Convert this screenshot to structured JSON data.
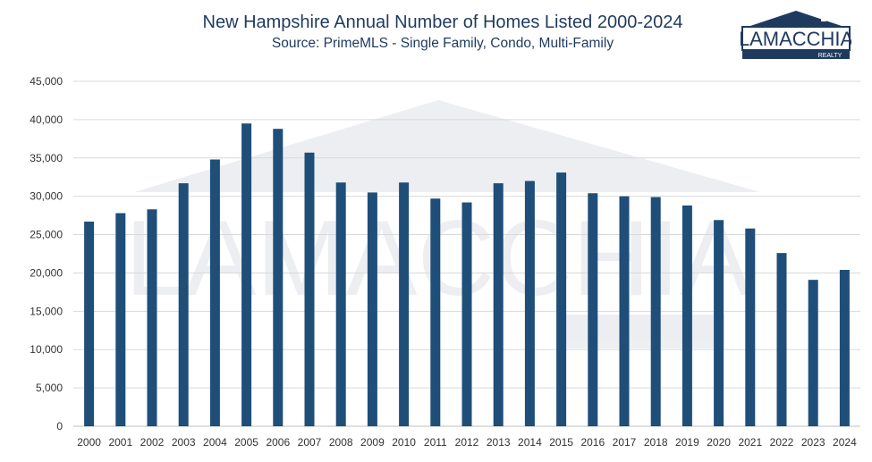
{
  "chart_data": {
    "type": "bar",
    "title": "New Hampshire Annual Number of Homes Listed 2000-2024",
    "subtitle": "Source: PrimeMLS - Single Family, Condo, Multi-Family",
    "categories": [
      "2000",
      "2001",
      "2002",
      "2003",
      "2004",
      "2005",
      "2006",
      "2007",
      "2008",
      "2009",
      "2010",
      "2011",
      "2012",
      "2013",
      "2014",
      "2015",
      "2016",
      "2017",
      "2018",
      "2019",
      "2020",
      "2021",
      "2022",
      "2023",
      "2024"
    ],
    "values": [
      26700,
      27800,
      28300,
      31700,
      34800,
      39500,
      38800,
      35700,
      31800,
      30500,
      31800,
      29700,
      29200,
      31700,
      32000,
      33100,
      30400,
      30000,
      29900,
      28800,
      26900,
      25800,
      22600,
      19100,
      20400
    ],
    "ylim": [
      0,
      45000
    ],
    "yticks": [
      "0",
      "5,000",
      "10,000",
      "15,000",
      "20,000",
      "25,000",
      "30,000",
      "35,000",
      "40,000",
      "45,000"
    ],
    "xlabel": "",
    "ylabel": "",
    "grid": true,
    "legend": "none",
    "bar_color": "#1f4e79"
  },
  "logo": {
    "name": "LAMACCHIA",
    "tagline": "REALTY",
    "color": "#1f3a5f"
  }
}
